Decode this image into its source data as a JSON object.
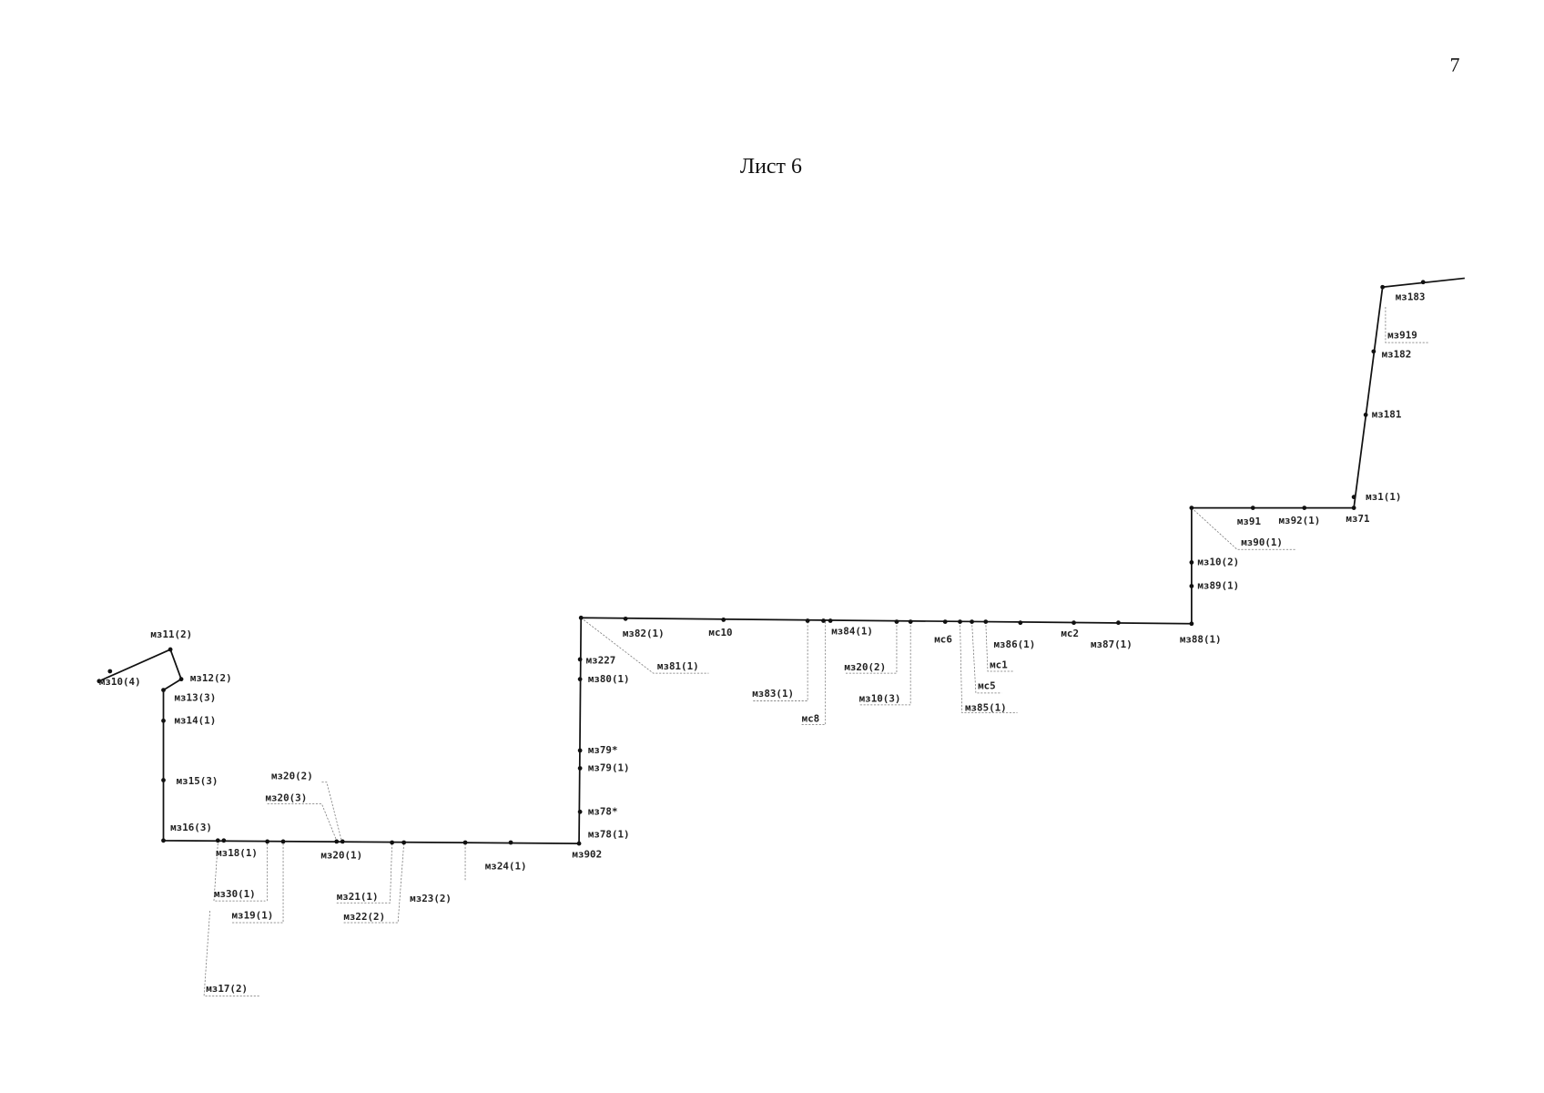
{
  "page_number": "7",
  "title": "Лист 6",
  "labels": [
    "мз183",
    "мз919",
    "мз182",
    "мз181",
    "мз1(1)",
    "мз71",
    "мз91",
    "мз92(1)",
    "мз90(1)",
    "мз10(2)",
    "мз89(1)",
    "мз88(1)",
    "мз87(1)",
    "мс2",
    "мз86(1)",
    "мс1",
    "мс5",
    "мз85(1)",
    "мс6",
    "мз84(1)",
    "мз20(2)",
    "мз10(3)",
    "мз83(1)",
    "мс8",
    "мс10",
    "мз82(1)",
    "мз81(1)",
    "мз227",
    "мз80(1)",
    "мз79*",
    "мз79(1)",
    "мз78*",
    "мз78(1)",
    "мз902",
    "мз24(1)",
    "мз23(2)",
    "мз21(1)",
    "мз22(2)",
    "мз20(1)",
    "мз20(2)",
    "мз20(3)",
    "мз18(1)",
    "мз30(1)",
    "мз19(1)",
    "мз17(2)",
    "мз16(3)",
    "мз15(3)",
    "мз14(1)",
    "мз13(3)",
    "мз12(2)",
    "мз11(2)",
    "мз10(4)"
  ]
}
